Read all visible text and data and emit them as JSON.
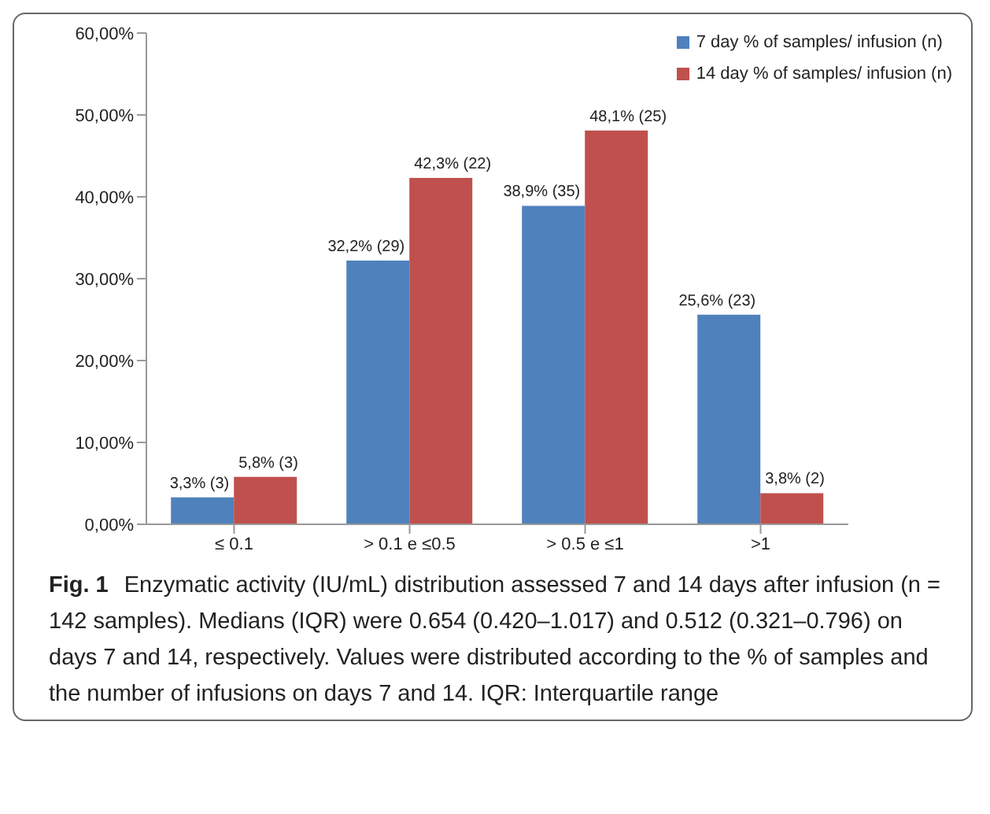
{
  "chart_data": {
    "type": "bar",
    "categories": [
      "≤ 0.1",
      "> 0.1 e ≤0.5",
      "> 0.5 e ≤1",
      ">1"
    ],
    "series": [
      {
        "name": "7 day % of samples/ infusion (n)",
        "color": "#4f81bd",
        "values": [
          3.3,
          32.2,
          38.9,
          25.6
        ],
        "value_labels": [
          "3,3% (3)",
          "32,2% (29)",
          "38,9% (35)",
          "25,6% (23)"
        ]
      },
      {
        "name": "14 day % of samples/ infusion (n)",
        "color": "#c0504d",
        "values": [
          5.8,
          42.3,
          48.1,
          3.8
        ],
        "value_labels": [
          "5,8% (3)",
          "42,3% (22)",
          "48,1% (25)",
          "3,8% (2)"
        ]
      }
    ],
    "ylim": [
      0,
      60
    ],
    "yticks": [
      {
        "value": 0,
        "label": "0,00%"
      },
      {
        "value": 10,
        "label": "10,00%"
      },
      {
        "value": 20,
        "label": "20,00%"
      },
      {
        "value": 30,
        "label": "30,00%"
      },
      {
        "value": 40,
        "label": "40,00%"
      },
      {
        "value": 50,
        "label": "50,00%"
      },
      {
        "value": 60,
        "label": "60,00%"
      }
    ],
    "grid": false,
    "legend": "top right",
    "annotations": [
      "Fig. 1",
      "Enzymatic activity (IU/mL) distribution assessed 7 and 14 days after infusion (n = 142 samples). Medians (IQR) were 0.654 (0.420–1.017) and 0.512 (0.321–0.796) on days 7 and 14, respectively. Values were distributed according to the % of samples and the number of infusions on days 7 and 14. IQR: Interquartile range"
    ]
  }
}
